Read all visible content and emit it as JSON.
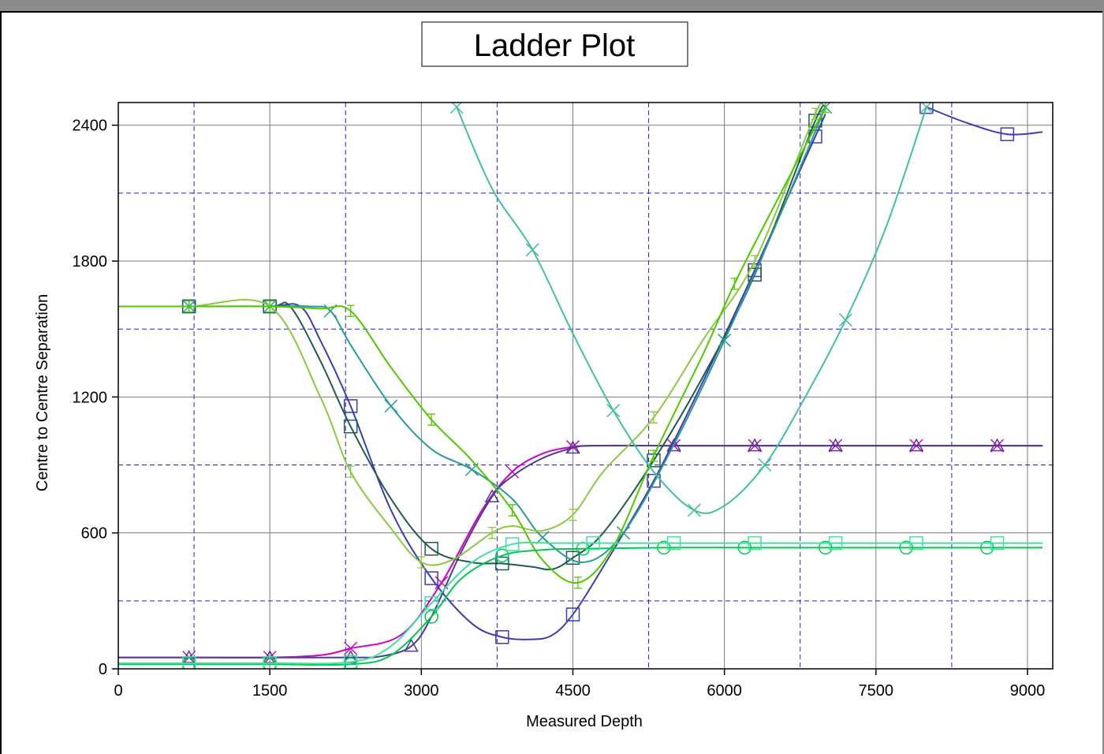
{
  "chart_data": {
    "type": "line",
    "title": "Ladder Plot",
    "xlabel": "Measured Depth",
    "ylabel": "Centre to Centre Separation",
    "xlim": [
      0,
      9250
    ],
    "ylim": [
      0,
      2500
    ],
    "x_ticks": [
      0,
      1500,
      3000,
      4500,
      6000,
      7500,
      9000
    ],
    "y_ticks": [
      0,
      600,
      1200,
      1800,
      2400
    ],
    "x_minor_dashed": [
      750,
      2250,
      3750,
      5250,
      6750,
      8250
    ],
    "y_minor_dashed": [
      300,
      900,
      1500,
      2100
    ],
    "grid": true,
    "legend": "none",
    "series": [
      {
        "color": "#d000c8",
        "marker": "x",
        "x": [
          0,
          700,
          1500,
          2000,
          2300,
          2800,
          3200,
          3600,
          3900,
          4200,
          4500,
          4700,
          5500,
          6300,
          7100,
          7900,
          8700,
          9150
        ],
        "y": [
          50,
          50,
          50,
          60,
          90,
          150,
          380,
          700,
          870,
          950,
          980,
          985,
          985,
          985,
          985,
          985,
          985,
          985
        ]
      },
      {
        "color": "#4d3d8c",
        "marker": "triangle",
        "x": [
          0,
          700,
          1500,
          2300,
          2600,
          2900,
          3100,
          3400,
          3700,
          3900,
          4200,
          4500,
          4700,
          5500,
          6300,
          7100,
          7900,
          8700,
          9150
        ],
        "y": [
          50,
          50,
          50,
          50,
          55,
          100,
          230,
          520,
          760,
          850,
          930,
          975,
          985,
          985,
          985,
          985,
          985,
          985,
          985
        ]
      },
      {
        "color": "#3c3cb4",
        "marker": "square",
        "x": [
          0,
          700,
          1500,
          1800,
          2000,
          2300,
          2700,
          3100,
          3500,
          3800,
          4100,
          4300,
          4500,
          4800,
          5300,
          5800,
          6300,
          6900,
          7000
        ],
        "y": [
          1600,
          1600,
          1600,
          1600,
          1450,
          1160,
          700,
          400,
          200,
          140,
          130,
          150,
          240,
          450,
          830,
          1280,
          1760,
          2350,
          2450
        ]
      },
      {
        "color": "#3c3cb4",
        "marker": "square",
        "x": [
          8000,
          8400,
          8800,
          9150
        ],
        "y": [
          2480,
          2410,
          2360,
          2370
        ]
      },
      {
        "color": "#1e5c50",
        "marker": "square",
        "x": [
          0,
          700,
          1500,
          1700,
          2000,
          2300,
          2700,
          3100,
          3500,
          3800,
          4100,
          4300,
          4500,
          4800,
          5300,
          5800,
          6300,
          6900,
          7000
        ],
        "y": [
          1600,
          1600,
          1600,
          1600,
          1360,
          1070,
          750,
          530,
          470,
          465,
          450,
          440,
          490,
          600,
          920,
          1300,
          1740,
          2420,
          2470
        ]
      },
      {
        "color": "#2a9a9a",
        "marker": "x",
        "x": [
          0,
          700,
          1500,
          1900,
          2100,
          2300,
          2700,
          3100,
          3500,
          3900,
          4200,
          4600,
          5000,
          5500,
          6000,
          6500,
          7000
        ],
        "y": [
          1600,
          1600,
          1600,
          1600,
          1580,
          1430,
          1160,
          970,
          880,
          750,
          580,
          470,
          600,
          990,
          1450,
          1950,
          2480
        ]
      },
      {
        "color": "#8cc840",
        "marker": "plus",
        "x": [
          0,
          700,
          1500,
          2000,
          2300,
          2700,
          3000,
          3300,
          3700,
          3900,
          4200,
          4500,
          4800,
          5300,
          5800,
          6300,
          6900,
          7000
        ],
        "y": [
          1600,
          1600,
          1600,
          1200,
          870,
          620,
          470,
          480,
          600,
          630,
          610,
          680,
          870,
          1110,
          1460,
          1800,
          2450,
          2500
        ]
      },
      {
        "color": "#50c800",
        "marker": "plus",
        "x": [
          0,
          700,
          1500,
          2000,
          2300,
          2700,
          3100,
          3500,
          3900,
          4200,
          4550,
          4900,
          5300,
          5800,
          6100,
          6500,
          7000
        ],
        "y": [
          1600,
          1600,
          1600,
          1590,
          1580,
          1330,
          1100,
          920,
          700,
          480,
          380,
          540,
          940,
          1400,
          1700,
          2050,
          2480
        ]
      },
      {
        "color": "#40c0a0",
        "marker": "x",
        "x": [
          3350,
          3700,
          4100,
          4500,
          4900,
          5300,
          5700,
          6000,
          6400,
          6800,
          7200,
          7600,
          8000
        ],
        "y": [
          2480,
          2120,
          1850,
          1480,
          1140,
          870,
          700,
          720,
          900,
          1200,
          1540,
          1950,
          2480
        ]
      },
      {
        "color": "#00c850",
        "marker": "circle",
        "x": [
          0,
          700,
          1500,
          2300,
          2700,
          3100,
          3400,
          3800,
          4200,
          4600,
          5400,
          6200,
          7000,
          7800,
          8600,
          9150
        ],
        "y": [
          20,
          20,
          20,
          20,
          60,
          230,
          400,
          500,
          525,
          530,
          535,
          535,
          535,
          535,
          535,
          535
        ]
      },
      {
        "color": "#40e0a0",
        "marker": "square",
        "x": [
          0,
          700,
          1500,
          2300,
          2700,
          3100,
          3500,
          3900,
          4300,
          4700,
          5500,
          6300,
          7100,
          7900,
          8700,
          9150
        ],
        "y": [
          25,
          25,
          25,
          30,
          100,
          290,
          470,
          550,
          555,
          555,
          555,
          555,
          555,
          555,
          555,
          555
        ]
      }
    ]
  }
}
